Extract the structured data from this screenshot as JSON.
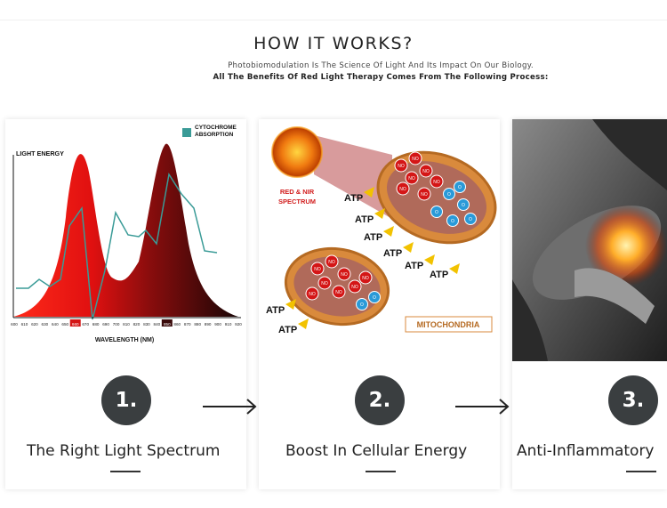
{
  "header": {
    "title": "HOW IT WORKS?",
    "subtitle": "Photobiomodulation Is The Science Of Light And Its Impact On Our Biology.",
    "subtitle_bold": "All The Benefits Of Red Light Therapy Comes From The Following Process:"
  },
  "steps": [
    {
      "number": "1.",
      "title": "The Right Light Spectrum",
      "figure": {
        "y_label": "LIGHT ENERGY",
        "x_label": "WAVELENGTH (NM)",
        "legend": "CYTOCHROME ABSORPTION",
        "ticks": [
          "600",
          "610",
          "620",
          "630",
          "640",
          "650",
          "660",
          "670",
          "680",
          "690",
          "700",
          "810",
          "820",
          "830",
          "840",
          "850",
          "860",
          "870",
          "880",
          "890",
          "900",
          "910",
          "920"
        ],
        "highlight_ticks": [
          "660",
          "850"
        ]
      }
    },
    {
      "number": "2.",
      "title": "Boost In Cellular Energy",
      "figure": {
        "sun_label": "RED & NIR SPECTRUM",
        "atp_label": "ATP",
        "no_label": "NO",
        "o2_label": "O",
        "mito_label": "MITOCHONDRIA"
      }
    },
    {
      "number": "3.",
      "title": "Anti-Inflammatory"
    }
  ],
  "colors": {
    "badge": "#3a3e40",
    "red": "#d41616",
    "teal": "#3a9b97",
    "mito": "#d98a3c"
  }
}
